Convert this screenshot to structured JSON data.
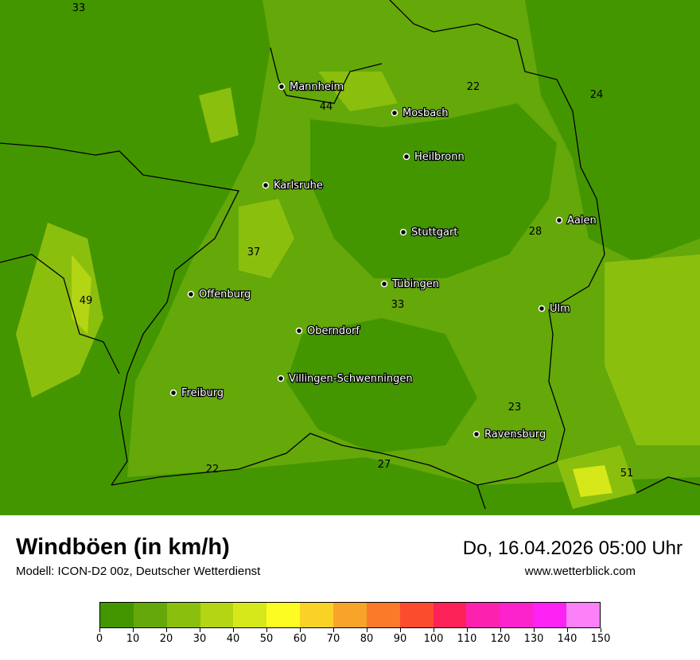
{
  "header": {
    "title": "Windböen (in km/h)",
    "subtitle": "Modell: ICON-D2 00z, Deutscher Wetterdienst",
    "datetime": "Do, 16.04.2026 05:00 Uhr",
    "website": "www.wetterblick.com"
  },
  "legend": {
    "ticks": [
      "0",
      "10",
      "20",
      "30",
      "40",
      "50",
      "60",
      "70",
      "80",
      "90",
      "100",
      "110",
      "120",
      "130",
      "140",
      "150"
    ],
    "colors": [
      "#449600",
      "#64a80a",
      "#8bbf0e",
      "#b3d514",
      "#d6e81a",
      "#fcfc22",
      "#fad226",
      "#f8a42a",
      "#fa7a2a",
      "#fc4c2e",
      "#fc2258",
      "#fc22b0",
      "#fc22cc",
      "#fc22f4",
      "#fc80f8"
    ]
  },
  "map": {
    "cities": [
      {
        "name": "Mannheim"
      },
      {
        "name": "Mosbach"
      },
      {
        "name": "Heilbronn"
      },
      {
        "name": "Karlsruhe"
      },
      {
        "name": "Stuttgart"
      },
      {
        "name": "Aalen"
      },
      {
        "name": "Tübingen"
      },
      {
        "name": "Ulm"
      },
      {
        "name": "Offenburg"
      },
      {
        "name": "Oberndorf"
      },
      {
        "name": "Villingen-Schwenningen"
      },
      {
        "name": "Freiburg"
      },
      {
        "name": "Ravensburg"
      }
    ],
    "values": [
      "33",
      "44",
      "22",
      "24",
      "28",
      "37",
      "49",
      "33",
      "23",
      "22",
      "27",
      "51"
    ]
  }
}
